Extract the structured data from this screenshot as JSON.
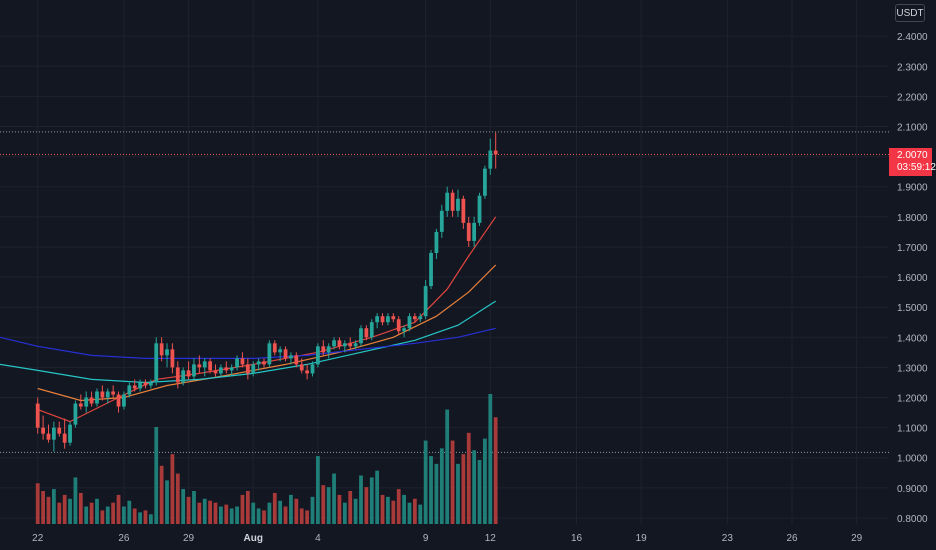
{
  "currency_label": "USDT",
  "last_price": {
    "value": "2.0070",
    "countdown": "03:59:12",
    "color": "#f23645"
  },
  "colors": {
    "background": "#131722",
    "grid": "#1e222d",
    "up": "#26a69a",
    "down": "#ef5350",
    "volume_up": "#1f7f78",
    "volume_down": "#a83a3a",
    "ma_red": "#e0453e",
    "ma_orange": "#e8803a",
    "ma_teal": "#26c6c6",
    "ma_blue": "#2630d8"
  },
  "chart_data": {
    "type": "candlestick",
    "y_axis": {
      "ticks": [
        "2.4000",
        "2.3000",
        "2.2000",
        "2.1000",
        "2.0000",
        "1.9000",
        "1.8000",
        "1.7000",
        "1.6000",
        "1.5000",
        "1.4000",
        "1.3000",
        "1.2000",
        "1.1000",
        "1.0000",
        "0.9000",
        "0.8000"
      ],
      "range": [
        0.78,
        2.52
      ]
    },
    "x_axis": {
      "ticks": [
        {
          "label": "22",
          "pos": 0
        },
        {
          "label": "26",
          "pos": 16
        },
        {
          "label": "29",
          "pos": 28
        },
        {
          "label": "Aug",
          "pos": 40,
          "bold": true
        },
        {
          "label": "4",
          "pos": 52
        },
        {
          "label": "9",
          "pos": 72
        },
        {
          "label": "12",
          "pos": 84
        },
        {
          "label": "16",
          "pos": 100
        },
        {
          "label": "19",
          "pos": 112
        },
        {
          "label": "23",
          "pos": 128
        },
        {
          "label": "26",
          "pos": 140
        },
        {
          "label": "29",
          "pos": 152
        }
      ],
      "range": [
        -7,
        158
      ]
    },
    "horizontal_lines": [
      2.082,
      2.007,
      1.018
    ],
    "candles": [
      [
        1.18,
        1.2,
        1.08,
        1.1
      ],
      [
        1.1,
        1.14,
        1.06,
        1.08
      ],
      [
        1.08,
        1.11,
        1.05,
        1.06
      ],
      [
        1.06,
        1.12,
        1.02,
        1.1
      ],
      [
        1.1,
        1.12,
        1.07,
        1.08
      ],
      [
        1.08,
        1.13,
        1.03,
        1.05
      ],
      [
        1.05,
        1.12,
        1.04,
        1.11
      ],
      [
        1.11,
        1.19,
        1.1,
        1.18
      ],
      [
        1.18,
        1.21,
        1.16,
        1.17
      ],
      [
        1.17,
        1.22,
        1.15,
        1.2
      ],
      [
        1.2,
        1.22,
        1.17,
        1.18
      ],
      [
        1.18,
        1.23,
        1.17,
        1.22
      ],
      [
        1.22,
        1.24,
        1.19,
        1.2
      ],
      [
        1.2,
        1.23,
        1.18,
        1.22
      ],
      [
        1.22,
        1.24,
        1.2,
        1.21
      ],
      [
        1.21,
        1.22,
        1.15,
        1.17
      ],
      [
        1.17,
        1.22,
        1.16,
        1.21
      ],
      [
        1.21,
        1.25,
        1.2,
        1.24
      ],
      [
        1.24,
        1.26,
        1.22,
        1.23
      ],
      [
        1.23,
        1.26,
        1.22,
        1.25
      ],
      [
        1.25,
        1.26,
        1.23,
        1.24
      ],
      [
        1.24,
        1.26,
        1.23,
        1.25
      ],
      [
        1.25,
        1.4,
        1.24,
        1.38
      ],
      [
        1.38,
        1.4,
        1.32,
        1.34
      ],
      [
        1.34,
        1.38,
        1.3,
        1.36
      ],
      [
        1.36,
        1.38,
        1.28,
        1.3
      ],
      [
        1.3,
        1.32,
        1.23,
        1.25
      ],
      [
        1.25,
        1.3,
        1.24,
        1.29
      ],
      [
        1.29,
        1.32,
        1.26,
        1.27
      ],
      [
        1.27,
        1.33,
        1.26,
        1.31
      ],
      [
        1.31,
        1.34,
        1.28,
        1.3
      ],
      [
        1.3,
        1.33,
        1.27,
        1.32
      ],
      [
        1.32,
        1.33,
        1.28,
        1.29
      ],
      [
        1.29,
        1.31,
        1.27,
        1.28
      ],
      [
        1.28,
        1.31,
        1.27,
        1.3
      ],
      [
        1.3,
        1.32,
        1.28,
        1.29
      ],
      [
        1.29,
        1.31,
        1.27,
        1.3
      ],
      [
        1.3,
        1.34,
        1.29,
        1.33
      ],
      [
        1.33,
        1.35,
        1.3,
        1.31
      ],
      [
        1.31,
        1.33,
        1.26,
        1.28
      ],
      [
        1.28,
        1.32,
        1.27,
        1.31
      ],
      [
        1.31,
        1.33,
        1.29,
        1.32
      ],
      [
        1.32,
        1.33,
        1.3,
        1.31
      ],
      [
        1.31,
        1.39,
        1.3,
        1.38
      ],
      [
        1.38,
        1.39,
        1.34,
        1.35
      ],
      [
        1.35,
        1.37,
        1.32,
        1.36
      ],
      [
        1.36,
        1.37,
        1.32,
        1.33
      ],
      [
        1.33,
        1.35,
        1.31,
        1.34
      ],
      [
        1.34,
        1.35,
        1.3,
        1.31
      ],
      [
        1.31,
        1.33,
        1.28,
        1.29
      ],
      [
        1.29,
        1.31,
        1.26,
        1.28
      ],
      [
        1.28,
        1.32,
        1.27,
        1.31
      ],
      [
        1.31,
        1.38,
        1.3,
        1.37
      ],
      [
        1.37,
        1.39,
        1.34,
        1.35
      ],
      [
        1.35,
        1.38,
        1.33,
        1.37
      ],
      [
        1.37,
        1.4,
        1.36,
        1.39
      ],
      [
        1.39,
        1.4,
        1.36,
        1.37
      ],
      [
        1.37,
        1.39,
        1.35,
        1.38
      ],
      [
        1.38,
        1.4,
        1.36,
        1.37
      ],
      [
        1.37,
        1.39,
        1.36,
        1.38
      ],
      [
        1.38,
        1.44,
        1.37,
        1.43
      ],
      [
        1.43,
        1.44,
        1.39,
        1.4
      ],
      [
        1.4,
        1.46,
        1.39,
        1.45
      ],
      [
        1.45,
        1.48,
        1.43,
        1.47
      ],
      [
        1.47,
        1.48,
        1.44,
        1.45
      ],
      [
        1.45,
        1.48,
        1.44,
        1.47
      ],
      [
        1.47,
        1.48,
        1.45,
        1.46
      ],
      [
        1.46,
        1.47,
        1.41,
        1.42
      ],
      [
        1.42,
        1.44,
        1.4,
        1.43
      ],
      [
        1.43,
        1.48,
        1.42,
        1.47
      ],
      [
        1.47,
        1.48,
        1.45,
        1.46
      ],
      [
        1.46,
        1.48,
        1.45,
        1.47
      ],
      [
        1.47,
        1.59,
        1.46,
        1.57
      ],
      [
        1.57,
        1.69,
        1.56,
        1.68
      ],
      [
        1.68,
        1.76,
        1.66,
        1.75
      ],
      [
        1.75,
        1.84,
        1.73,
        1.82
      ],
      [
        1.82,
        1.9,
        1.8,
        1.88
      ],
      [
        1.88,
        1.89,
        1.8,
        1.82
      ],
      [
        1.82,
        1.89,
        1.8,
        1.86
      ],
      [
        1.86,
        1.87,
        1.76,
        1.78
      ],
      [
        1.78,
        1.8,
        1.7,
        1.72
      ],
      [
        1.72,
        1.8,
        1.7,
        1.78
      ],
      [
        1.78,
        1.88,
        1.77,
        1.87
      ],
      [
        1.87,
        1.97,
        1.86,
        1.96
      ],
      [
        1.96,
        2.06,
        1.94,
        2.02
      ],
      [
        2.02,
        2.08,
        1.96,
        2.007
      ]
    ],
    "volumes": [
      0.42,
      0.34,
      0.28,
      0.36,
      0.22,
      0.3,
      0.26,
      0.48,
      0.32,
      0.18,
      0.22,
      0.26,
      0.14,
      0.18,
      0.22,
      0.3,
      0.18,
      0.24,
      0.16,
      0.12,
      0.14,
      0.1,
      1.0,
      0.6,
      0.45,
      0.72,
      0.52,
      0.36,
      0.28,
      0.34,
      0.22,
      0.26,
      0.24,
      0.22,
      0.18,
      0.2,
      0.16,
      0.18,
      0.3,
      0.34,
      0.22,
      0.16,
      0.14,
      0.22,
      0.32,
      0.24,
      0.18,
      0.3,
      0.26,
      0.16,
      0.14,
      0.28,
      0.7,
      0.4,
      0.38,
      0.52,
      0.3,
      0.22,
      0.34,
      0.26,
      0.5,
      0.38,
      0.48,
      0.55,
      0.3,
      0.28,
      0.24,
      0.36,
      0.3,
      0.22,
      0.26,
      0.2,
      0.86,
      0.7,
      0.62,
      0.78,
      1.18,
      0.86,
      0.62,
      0.72,
      0.94,
      0.76,
      0.66,
      0.88,
      1.34,
      1.1
    ],
    "moving_averages": [
      {
        "color": "#e0453e",
        "points": [
          [
            0,
            1.16
          ],
          [
            6,
            1.12
          ],
          [
            15,
            1.2
          ],
          [
            22,
            1.26
          ],
          [
            30,
            1.28
          ],
          [
            40,
            1.31
          ],
          [
            52,
            1.35
          ],
          [
            62,
            1.4
          ],
          [
            70,
            1.45
          ],
          [
            76,
            1.56
          ],
          [
            80,
            1.67
          ],
          [
            85,
            1.8
          ]
        ]
      },
      {
        "color": "#e8803a",
        "points": [
          [
            0,
            1.23
          ],
          [
            8,
            1.19
          ],
          [
            16,
            1.2
          ],
          [
            24,
            1.24
          ],
          [
            34,
            1.27
          ],
          [
            46,
            1.31
          ],
          [
            56,
            1.35
          ],
          [
            66,
            1.4
          ],
          [
            74,
            1.47
          ],
          [
            80,
            1.55
          ],
          [
            85,
            1.64
          ]
        ]
      },
      {
        "color": "#26c6c6",
        "points": [
          [
            -7,
            1.31
          ],
          [
            0,
            1.29
          ],
          [
            10,
            1.26
          ],
          [
            20,
            1.25
          ],
          [
            30,
            1.26
          ],
          [
            40,
            1.28
          ],
          [
            50,
            1.31
          ],
          [
            60,
            1.35
          ],
          [
            70,
            1.39
          ],
          [
            78,
            1.44
          ],
          [
            85,
            1.52
          ]
        ]
      },
      {
        "color": "#2630d8",
        "points": [
          [
            -7,
            1.4
          ],
          [
            0,
            1.37
          ],
          [
            10,
            1.34
          ],
          [
            20,
            1.33
          ],
          [
            30,
            1.33
          ],
          [
            40,
            1.33
          ],
          [
            50,
            1.34
          ],
          [
            60,
            1.36
          ],
          [
            70,
            1.38
          ],
          [
            78,
            1.4
          ],
          [
            85,
            1.43
          ]
        ]
      }
    ]
  }
}
